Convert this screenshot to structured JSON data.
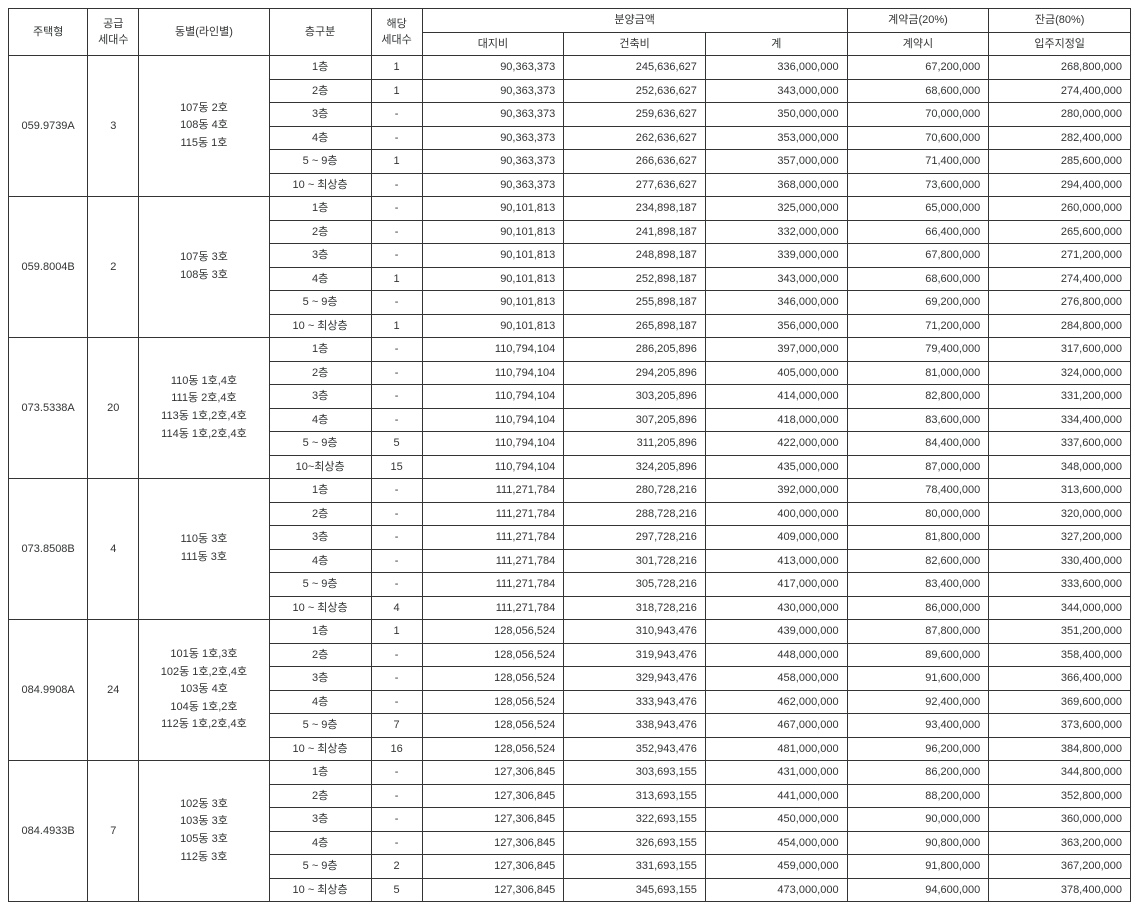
{
  "header": {
    "type": "주택형",
    "supply": "공급\n세대수",
    "dong": "동별(라인별)",
    "floor": "층구분",
    "count": "해당\n세대수",
    "sale_group": "분양금액",
    "land": "대지비",
    "build": "건축비",
    "total": "계",
    "deposit_group": "계약금(20%)",
    "deposit": "계약시",
    "balance_group": "잔금(80%)",
    "balance": "입주지정일"
  },
  "groups": [
    {
      "type": "059.9739A",
      "supply": "3",
      "dong": "107동 2호\n108동 4호\n115동 1호",
      "rows": [
        {
          "floor": "1층",
          "cnt": "1",
          "land": "90,363,373",
          "build": "245,636,627",
          "total": "336,000,000",
          "dep": "67,200,000",
          "bal": "268,800,000"
        },
        {
          "floor": "2층",
          "cnt": "1",
          "land": "90,363,373",
          "build": "252,636,627",
          "total": "343,000,000",
          "dep": "68,600,000",
          "bal": "274,400,000"
        },
        {
          "floor": "3층",
          "cnt": "-",
          "land": "90,363,373",
          "build": "259,636,627",
          "total": "350,000,000",
          "dep": "70,000,000",
          "bal": "280,000,000"
        },
        {
          "floor": "4층",
          "cnt": "-",
          "land": "90,363,373",
          "build": "262,636,627",
          "total": "353,000,000",
          "dep": "70,600,000",
          "bal": "282,400,000"
        },
        {
          "floor": "5 ~ 9층",
          "cnt": "1",
          "land": "90,363,373",
          "build": "266,636,627",
          "total": "357,000,000",
          "dep": "71,400,000",
          "bal": "285,600,000"
        },
        {
          "floor": "10 ~ 최상층",
          "cnt": "-",
          "land": "90,363,373",
          "build": "277,636,627",
          "total": "368,000,000",
          "dep": "73,600,000",
          "bal": "294,400,000"
        }
      ]
    },
    {
      "type": "059.8004B",
      "supply": "2",
      "dong": "107동 3호\n108동 3호",
      "rows": [
        {
          "floor": "1층",
          "cnt": "-",
          "land": "90,101,813",
          "build": "234,898,187",
          "total": "325,000,000",
          "dep": "65,000,000",
          "bal": "260,000,000"
        },
        {
          "floor": "2층",
          "cnt": "-",
          "land": "90,101,813",
          "build": "241,898,187",
          "total": "332,000,000",
          "dep": "66,400,000",
          "bal": "265,600,000"
        },
        {
          "floor": "3층",
          "cnt": "-",
          "land": "90,101,813",
          "build": "248,898,187",
          "total": "339,000,000",
          "dep": "67,800,000",
          "bal": "271,200,000"
        },
        {
          "floor": "4층",
          "cnt": "1",
          "land": "90,101,813",
          "build": "252,898,187",
          "total": "343,000,000",
          "dep": "68,600,000",
          "bal": "274,400,000"
        },
        {
          "floor": "5 ~ 9층",
          "cnt": "-",
          "land": "90,101,813",
          "build": "255,898,187",
          "total": "346,000,000",
          "dep": "69,200,000",
          "bal": "276,800,000"
        },
        {
          "floor": "10 ~ 최상층",
          "cnt": "1",
          "land": "90,101,813",
          "build": "265,898,187",
          "total": "356,000,000",
          "dep": "71,200,000",
          "bal": "284,800,000"
        }
      ]
    },
    {
      "type": "073.5338A",
      "supply": "20",
      "dong": "110동 1호,4호\n111동 2호,4호\n113동 1호,2호,4호\n114동 1호,2호,4호",
      "rows": [
        {
          "floor": "1층",
          "cnt": "-",
          "land": "110,794,104",
          "build": "286,205,896",
          "total": "397,000,000",
          "dep": "79,400,000",
          "bal": "317,600,000"
        },
        {
          "floor": "2층",
          "cnt": "-",
          "land": "110,794,104",
          "build": "294,205,896",
          "total": "405,000,000",
          "dep": "81,000,000",
          "bal": "324,000,000"
        },
        {
          "floor": "3층",
          "cnt": "-",
          "land": "110,794,104",
          "build": "303,205,896",
          "total": "414,000,000",
          "dep": "82,800,000",
          "bal": "331,200,000"
        },
        {
          "floor": "4층",
          "cnt": "-",
          "land": "110,794,104",
          "build": "307,205,896",
          "total": "418,000,000",
          "dep": "83,600,000",
          "bal": "334,400,000"
        },
        {
          "floor": "5 ~ 9층",
          "cnt": "5",
          "land": "110,794,104",
          "build": "311,205,896",
          "total": "422,000,000",
          "dep": "84,400,000",
          "bal": "337,600,000"
        },
        {
          "floor": "10~최상층",
          "cnt": "15",
          "land": "110,794,104",
          "build": "324,205,896",
          "total": "435,000,000",
          "dep": "87,000,000",
          "bal": "348,000,000"
        }
      ]
    },
    {
      "type": "073.8508B",
      "supply": "4",
      "dong": "110동 3호\n111동 3호",
      "rows": [
        {
          "floor": "1층",
          "cnt": "-",
          "land": "111,271,784",
          "build": "280,728,216",
          "total": "392,000,000",
          "dep": "78,400,000",
          "bal": "313,600,000"
        },
        {
          "floor": "2층",
          "cnt": "-",
          "land": "111,271,784",
          "build": "288,728,216",
          "total": "400,000,000",
          "dep": "80,000,000",
          "bal": "320,000,000"
        },
        {
          "floor": "3층",
          "cnt": "-",
          "land": "111,271,784",
          "build": "297,728,216",
          "total": "409,000,000",
          "dep": "81,800,000",
          "bal": "327,200,000"
        },
        {
          "floor": "4층",
          "cnt": "-",
          "land": "111,271,784",
          "build": "301,728,216",
          "total": "413,000,000",
          "dep": "82,600,000",
          "bal": "330,400,000"
        },
        {
          "floor": "5 ~ 9층",
          "cnt": "-",
          "land": "111,271,784",
          "build": "305,728,216",
          "total": "417,000,000",
          "dep": "83,400,000",
          "bal": "333,600,000"
        },
        {
          "floor": "10 ~ 최상층",
          "cnt": "4",
          "land": "111,271,784",
          "build": "318,728,216",
          "total": "430,000,000",
          "dep": "86,000,000",
          "bal": "344,000,000"
        }
      ]
    },
    {
      "type": "084.9908A",
      "supply": "24",
      "dong": "101동 1호,3호\n102동 1호,2호,4호\n103동 4호\n104동 1호,2호\n112동 1호,2호,4호",
      "rows": [
        {
          "floor": "1층",
          "cnt": "1",
          "land": "128,056,524",
          "build": "310,943,476",
          "total": "439,000,000",
          "dep": "87,800,000",
          "bal": "351,200,000"
        },
        {
          "floor": "2층",
          "cnt": "-",
          "land": "128,056,524",
          "build": "319,943,476",
          "total": "448,000,000",
          "dep": "89,600,000",
          "bal": "358,400,000"
        },
        {
          "floor": "3층",
          "cnt": "-",
          "land": "128,056,524",
          "build": "329,943,476",
          "total": "458,000,000",
          "dep": "91,600,000",
          "bal": "366,400,000"
        },
        {
          "floor": "4층",
          "cnt": "-",
          "land": "128,056,524",
          "build": "333,943,476",
          "total": "462,000,000",
          "dep": "92,400,000",
          "bal": "369,600,000"
        },
        {
          "floor": "5 ~ 9층",
          "cnt": "7",
          "land": "128,056,524",
          "build": "338,943,476",
          "total": "467,000,000",
          "dep": "93,400,000",
          "bal": "373,600,000"
        },
        {
          "floor": "10 ~ 최상층",
          "cnt": "16",
          "land": "128,056,524",
          "build": "352,943,476",
          "total": "481,000,000",
          "dep": "96,200,000",
          "bal": "384,800,000"
        }
      ]
    },
    {
      "type": "084.4933B",
      "supply": "7",
      "dong": "102동 3호\n103동 3호\n105동 3호\n112동 3호",
      "rows": [
        {
          "floor": "1층",
          "cnt": "-",
          "land": "127,306,845",
          "build": "303,693,155",
          "total": "431,000,000",
          "dep": "86,200,000",
          "bal": "344,800,000"
        },
        {
          "floor": "2층",
          "cnt": "-",
          "land": "127,306,845",
          "build": "313,693,155",
          "total": "441,000,000",
          "dep": "88,200,000",
          "bal": "352,800,000"
        },
        {
          "floor": "3층",
          "cnt": "-",
          "land": "127,306,845",
          "build": "322,693,155",
          "total": "450,000,000",
          "dep": "90,000,000",
          "bal": "360,000,000"
        },
        {
          "floor": "4층",
          "cnt": "-",
          "land": "127,306,845",
          "build": "326,693,155",
          "total": "454,000,000",
          "dep": "90,800,000",
          "bal": "363,200,000"
        },
        {
          "floor": "5 ~ 9층",
          "cnt": "2",
          "land": "127,306,845",
          "build": "331,693,155",
          "total": "459,000,000",
          "dep": "91,800,000",
          "bal": "367,200,000"
        },
        {
          "floor": "10 ~ 최상층",
          "cnt": "5",
          "land": "127,306,845",
          "build": "345,693,155",
          "total": "473,000,000",
          "dep": "94,600,000",
          "bal": "378,400,000"
        }
      ]
    }
  ]
}
